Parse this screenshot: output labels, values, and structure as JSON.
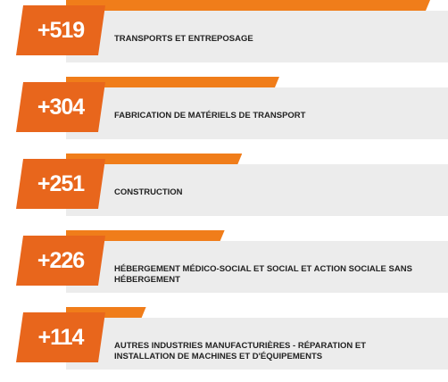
{
  "chart_data": {
    "type": "bar",
    "categories": [
      "TRANSPORTS ET ENTREPOSAGE",
      "FABRICATION DE MATÉRIELS DE TRANSPORT",
      "CONSTRUCTION",
      "HÉBERGEMENT MÉDICO-SOCIAL ET SOCIAL ET ACTION SOCIALE SANS HÉBERGEMENT",
      "AUTRES INDUSTRIES MANUFACTURIÈRES - RÉPARATION ET INSTALLATION DE MACHINES ET D'ÉQUIPEMENTS"
    ],
    "values": [
      519,
      304,
      251,
      226,
      114
    ],
    "value_labels": [
      "+519",
      "+304",
      "+251",
      "+226",
      "+114"
    ],
    "color": "#f07d1a"
  }
}
